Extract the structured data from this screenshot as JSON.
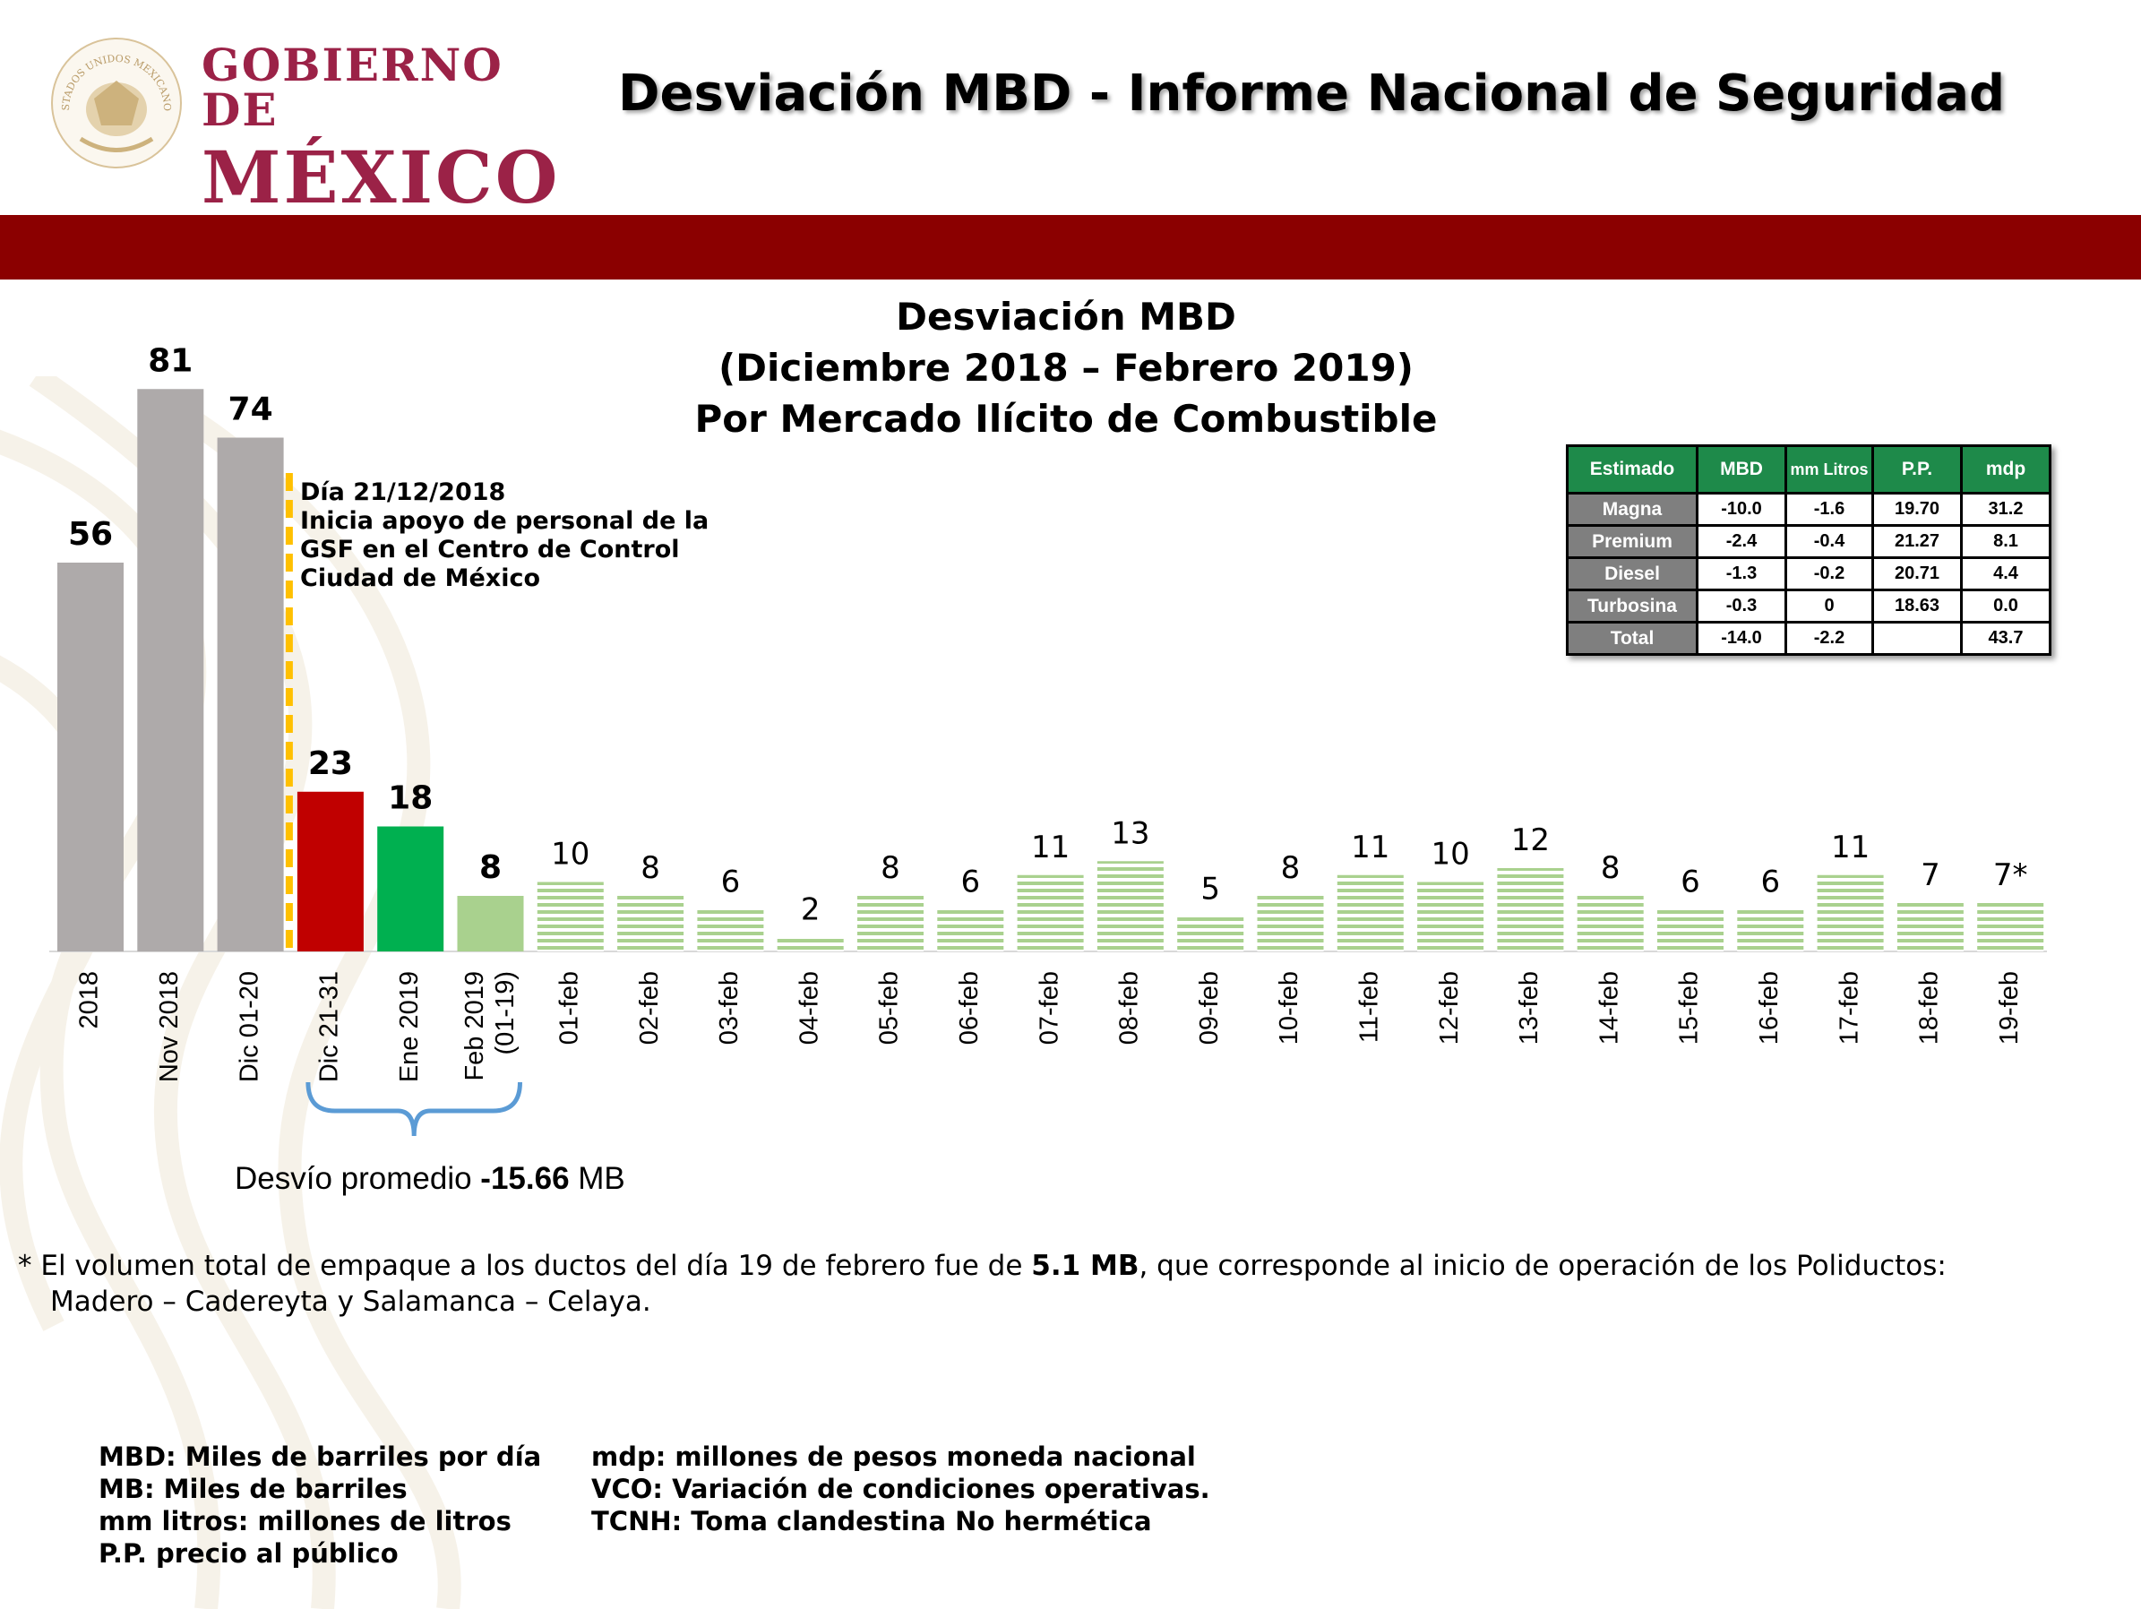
{
  "header": {
    "logo_line1": "GOBIERNO DE",
    "logo_line2": "MÉXICO",
    "seal_text": "ESTADOS UNIDOS MEXICANOS",
    "slide_title": "Desviación MBD - Informe Nacional de Seguridad"
  },
  "chart_data": {
    "type": "bar",
    "title": [
      "Desviación MBD",
      "(Diciembre 2018 – Febrero 2019)",
      "Por Mercado Ilícito de Combustible"
    ],
    "xlabel": "",
    "ylabel": "",
    "categories": [
      "2018",
      "Nov 2018",
      "Dic  01-20",
      "Dic  21-31",
      "Ene 2019",
      "Feb 2019 (01-19)",
      "01-feb",
      "02-feb",
      "03-feb",
      "04-feb",
      "05-feb",
      "06-feb",
      "07-feb",
      "08-feb",
      "09-feb",
      "10-feb",
      "11-feb",
      "12-feb",
      "13-feb",
      "14-feb",
      "15-feb",
      "16-feb",
      "17-feb",
      "18-feb",
      "19-feb"
    ],
    "tick_labels": [
      [
        "2018"
      ],
      [
        "Nov 2018"
      ],
      [
        "Dic  01-20"
      ],
      [
        "Dic  21-31"
      ],
      [
        "Ene 2019"
      ],
      [
        "Feb 2019",
        "(01-19)"
      ],
      [
        "01-feb"
      ],
      [
        "02-feb"
      ],
      [
        "03-feb"
      ],
      [
        "04-feb"
      ],
      [
        "05-feb"
      ],
      [
        "06-feb"
      ],
      [
        "07-feb"
      ],
      [
        "08-feb"
      ],
      [
        "09-feb"
      ],
      [
        "10-feb"
      ],
      [
        "11-feb"
      ],
      [
        "12-feb"
      ],
      [
        "13-feb"
      ],
      [
        "14-feb"
      ],
      [
        "15-feb"
      ],
      [
        "16-feb"
      ],
      [
        "17-feb"
      ],
      [
        "18-feb"
      ],
      [
        "19-feb"
      ]
    ],
    "values": [
      56,
      81,
      74,
      23,
      18,
      8,
      10,
      8,
      6,
      2,
      8,
      6,
      11,
      13,
      5,
      8,
      11,
      10,
      12,
      8,
      6,
      6,
      11,
      7,
      7
    ],
    "data_labels": [
      "56",
      "81",
      "74",
      "23",
      "18",
      "8",
      "10",
      "8",
      "6",
      "2",
      "8",
      "6",
      "11",
      "13",
      "5",
      "8",
      "11",
      "10",
      "12",
      "8",
      "6",
      "6",
      "11",
      "7",
      "7*"
    ],
    "bar_colors": [
      "#aeaaaa",
      "#aeaaaa",
      "#aeaaaa",
      "#c00000",
      "#00b050",
      "#a9d18e",
      "#a9d18e",
      "#a9d18e",
      "#a9d18e",
      "#a9d18e",
      "#a9d18e",
      "#a9d18e",
      "#a9d18e",
      "#a9d18e",
      "#a9d18e",
      "#a9d18e",
      "#a9d18e",
      "#a9d18e",
      "#a9d18e",
      "#a9d18e",
      "#a9d18e",
      "#a9d18e",
      "#a9d18e",
      "#a9d18e",
      "#a9d18e"
    ],
    "bar_pattern": [
      "solid",
      "solid",
      "solid",
      "solid",
      "solid",
      "solid",
      "striped",
      "striped",
      "striped",
      "striped",
      "striped",
      "striped",
      "striped",
      "striped",
      "striped",
      "striped",
      "striped",
      "striped",
      "striped",
      "striped",
      "striped",
      "striped",
      "striped",
      "striped",
      "striped"
    ],
    "bold_labels": [
      true,
      true,
      true,
      true,
      true,
      true,
      false,
      false,
      false,
      false,
      false,
      false,
      false,
      false,
      false,
      false,
      false,
      false,
      false,
      false,
      false,
      false,
      false,
      false,
      false
    ],
    "ylim": [
      0,
      81
    ],
    "grid": false,
    "legend": "none"
  },
  "annotation": {
    "lines": [
      "Día 21/12/2018",
      "Inicia apoyo de personal de la",
      "GSF en el Centro de Control",
      "Ciudad de México"
    ],
    "line_color": "#ffc000"
  },
  "desvio": {
    "prefix": "Desvío promedio ",
    "value": "-15.66",
    "suffix": " MB",
    "brace_color": "#5b9bd5"
  },
  "table": {
    "headers": [
      "Estimado",
      "MBD",
      "mm Litros",
      "P.P.",
      "mdp"
    ],
    "rows": [
      [
        "Magna",
        "-10.0",
        "-1.6",
        "19.70",
        "31.2"
      ],
      [
        "Premium",
        "-2.4",
        "-0.4",
        "21.27",
        "8.1"
      ],
      [
        "Diesel",
        "-1.3",
        "-0.2",
        "20.71",
        "4.4"
      ],
      [
        "Turbosina",
        "-0.3",
        "0",
        "18.63",
        "0.0"
      ],
      [
        "Total",
        "-14.0",
        "-2.2",
        "",
        "43.7"
      ]
    ],
    "header_color": "#1e8a4a"
  },
  "footnote": {
    "line1_pre": "* El volumen total de empaque a los ductos del día 19 de febrero fue de ",
    "line1_bold": "5.1 MB",
    "line1_post": ", que corresponde al inicio de operación de los Poliductos:",
    "line2": "Madero – Cadereyta y Salamanca – Celaya."
  },
  "glossary": {
    "left": [
      "MBD: Miles de barriles por día",
      "MB: Miles de barriles",
      "mm litros: millones de litros",
      "P.P. precio al público"
    ],
    "right": [
      "mdp: millones de pesos moneda nacional",
      "VCO: Variación de condiciones operativas.",
      "TCNH: Toma clandestina No hermética"
    ]
  },
  "colors": {
    "band": "#8b0000",
    "brand": "#9b2247"
  }
}
